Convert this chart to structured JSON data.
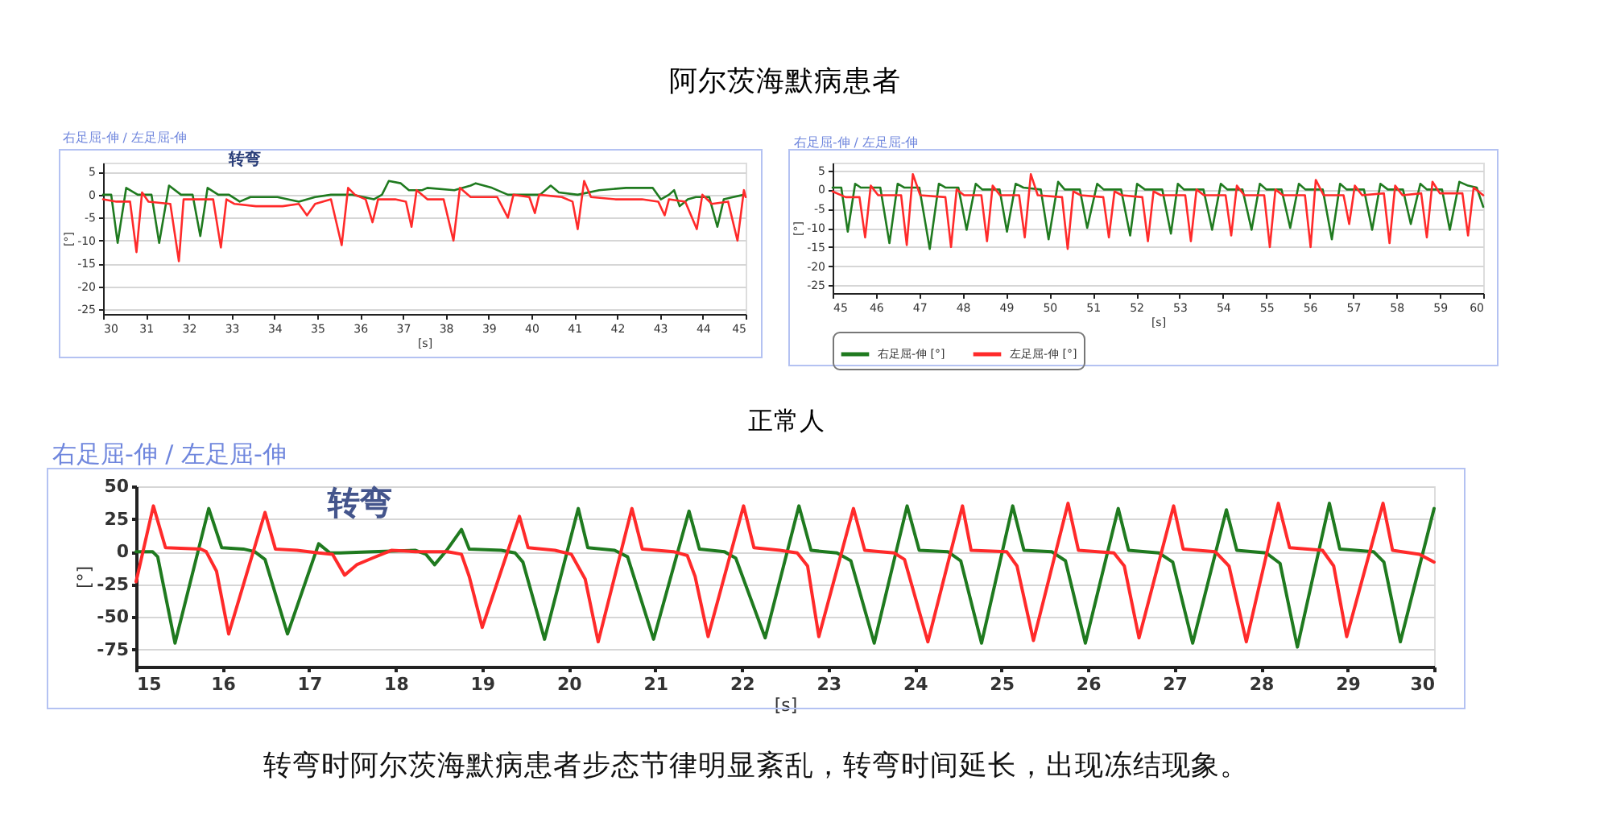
{
  "chart_data": [
    {
      "type": "line",
      "title": "阿尔茨海默病患者",
      "subtitle": "右足屈-伸 / 左足屈-伸",
      "xlabel": "[s]",
      "ylabel": "[°]",
      "annotations": [
        "转弯"
      ],
      "xlim": [
        30,
        45
      ],
      "ylim": [
        -26,
        7
      ],
      "xticks": [
        30,
        31,
        32,
        33,
        34,
        35,
        36,
        37,
        38,
        39,
        40,
        41,
        42,
        43,
        44,
        45
      ],
      "yticks": [
        5,
        0,
        -5,
        -10,
        -15,
        -20,
        -25
      ],
      "grid": "y",
      "series": [
        {
          "color": "#1f7a1f",
          "x": [
            30.0,
            30.19,
            30.34,
            30.54,
            30.81,
            31.13,
            31.31,
            31.54,
            31.82,
            32.09,
            32.27,
            32.44,
            32.69,
            32.94,
            33.19,
            33.44,
            34.07,
            34.57,
            34.95,
            35.32,
            35.82,
            36.32,
            36.51,
            36.67,
            36.95,
            37.14,
            37.45,
            37.57,
            38.2,
            38.58,
            38.7,
            39.08,
            39.45,
            39.83,
            40.2,
            40.45,
            40.64,
            41.08,
            41.58,
            42.21,
            42.83,
            43.02,
            43.21,
            43.33,
            43.46,
            43.65,
            43.84,
            44.15,
            44.34,
            44.49,
            44.71,
            44.96
          ],
          "values": [
            0,
            0,
            -10.5,
            1.5,
            0,
            0,
            -10.5,
            2,
            0,
            0,
            -9,
            1.5,
            0,
            0,
            -1.5,
            -0.5,
            -0.5,
            -1.5,
            -0.5,
            0,
            0,
            -1,
            0,
            3,
            2.5,
            1,
            1,
            1.5,
            1,
            2,
            2.5,
            1.5,
            0,
            0,
            0,
            2,
            0.5,
            0,
            1,
            1.5,
            1.5,
            -1,
            0,
            1,
            -2.5,
            -1,
            -0.5,
            -0.5,
            -7,
            -1,
            -0.5,
            0
          ]
        },
        {
          "color": "#ff2a2a",
          "x": [
            30.0,
            30.31,
            30.63,
            30.78,
            30.91,
            31.06,
            31.57,
            31.77,
            31.88,
            32.19,
            32.57,
            32.75,
            32.88,
            33.07,
            33.57,
            34.19,
            34.57,
            34.76,
            34.95,
            35.32,
            35.57,
            35.72,
            35.88,
            36.13,
            36.29,
            36.42,
            36.82,
            37.07,
            37.2,
            37.32,
            37.57,
            37.95,
            38.18,
            38.33,
            38.58,
            39.2,
            39.45,
            39.58,
            39.95,
            40.08,
            40.18,
            40.71,
            40.96,
            41.08,
            41.23,
            41.39,
            41.96,
            42.58,
            42.96,
            43.11,
            43.21,
            43.59,
            43.86,
            43.99,
            44.21,
            44.59,
            44.81,
            44.96,
            45.0
          ],
          "values": [
            -1,
            -1.5,
            -1.5,
            -12.5,
            0.5,
            -1.5,
            -2,
            -14.5,
            -1,
            -1,
            -1,
            -11.5,
            -1,
            -2,
            -2.5,
            -2.5,
            -2,
            -4.5,
            -2,
            -1,
            -11,
            1.5,
            0,
            -1,
            -6,
            -1,
            -1,
            -1.5,
            -7,
            1,
            -1,
            -1,
            -10,
            1.5,
            -0.5,
            -0.5,
            -5,
            0,
            -0.5,
            -4,
            0,
            -0.5,
            -1.5,
            -7.5,
            3,
            -0.5,
            -1,
            -1,
            -1.5,
            -4.5,
            -1,
            -1.5,
            -7.5,
            0,
            -2,
            -1.5,
            -10,
            1,
            -0.5
          ]
        }
      ]
    },
    {
      "type": "line",
      "subtitle": "右足屈-伸 / 左足屈-伸",
      "xlabel": "[s]",
      "ylabel": "[°]",
      "xlim": [
        45,
        60
      ],
      "ylim": [
        -27,
        7
      ],
      "xticks": [
        45,
        46,
        47,
        48,
        49,
        50,
        51,
        52,
        53,
        54,
        55,
        56,
        57,
        58,
        59,
        60
      ],
      "yticks": [
        5,
        0,
        -5,
        -10,
        -15,
        -20,
        -25
      ],
      "grid": "y",
      "legend": "bottom",
      "series": [
        {
          "name": "右足屈-伸 [°]",
          "color": "#1f7a1f",
          "x": [
            45.0,
            45.2,
            45.35,
            45.52,
            45.65,
            46.1,
            46.31,
            46.5,
            46.65,
            47.0,
            47.24,
            47.45,
            47.6,
            47.9,
            48.09,
            48.3,
            48.45,
            48.85,
            49.02,
            49.22,
            49.4,
            49.8,
            49.98,
            50.2,
            50.35,
            50.7,
            50.87,
            51.1,
            51.25,
            51.65,
            51.86,
            52.02,
            52.2,
            52.6,
            52.8,
            52.96,
            53.1,
            53.55,
            53.75,
            53.95,
            54.1,
            54.45,
            54.66,
            54.85,
            55.0,
            55.35,
            55.55,
            55.75,
            55.9,
            56.3,
            56.51,
            56.7,
            56.85,
            57.25,
            57.44,
            57.63,
            57.8,
            58.15,
            58.33,
            58.55,
            58.7,
            59.05,
            59.23,
            59.45,
            59.65,
            59.85,
            60.0
          ],
          "values": [
            0.5,
            0.5,
            -11,
            1.5,
            0.5,
            0.5,
            -14,
            1.5,
            0.5,
            0.5,
            -15.5,
            1.5,
            0.5,
            0.5,
            -10.5,
            1.5,
            0,
            0,
            -11,
            1.5,
            0.5,
            0,
            -13,
            2,
            0,
            0,
            -10,
            1.5,
            0,
            0,
            -12,
            1.5,
            0,
            0,
            -11.5,
            1.5,
            0,
            0,
            -10.5,
            1.5,
            0,
            0,
            -10.5,
            1.5,
            0,
            0,
            -10,
            1.5,
            0,
            0,
            -13,
            1.5,
            0,
            0,
            -10.5,
            1.5,
            0,
            0,
            -9,
            1.5,
            0,
            0,
            -10.5,
            2,
            1,
            0.5,
            -4.5
          ]
        },
        {
          "name": "左足屈-伸 [°]",
          "color": "#ff2a2a",
          "x": [
            45.0,
            45.3,
            45.62,
            45.75,
            45.88,
            46.05,
            46.58,
            46.71,
            46.85,
            47.02,
            47.6,
            47.73,
            47.86,
            48.03,
            48.43,
            48.56,
            48.69,
            48.86,
            49.3,
            49.43,
            49.57,
            49.73,
            50.29,
            50.42,
            50.55,
            50.72,
            51.24,
            51.37,
            51.5,
            51.67,
            52.14,
            52.27,
            52.4,
            52.57,
            53.13,
            53.26,
            53.39,
            53.56,
            54.06,
            54.19,
            54.32,
            54.49,
            54.95,
            55.08,
            55.21,
            55.38,
            55.89,
            56.02,
            56.14,
            56.32,
            56.78,
            56.91,
            57.04,
            57.21,
            57.71,
            57.84,
            57.97,
            58.14,
            58.57,
            58.7,
            58.83,
            59.0,
            59.52,
            59.65,
            59.78,
            60.0
          ],
          "values": [
            -0.5,
            -2,
            -2,
            -12.5,
            1,
            -1.5,
            -1.5,
            -14.5,
            4,
            -1.5,
            -2,
            -15,
            0,
            -1.5,
            -1.5,
            -13.5,
            1,
            -1.5,
            -1.5,
            -12.5,
            4,
            -1.5,
            -2,
            -15.5,
            -0.5,
            -1.5,
            -2,
            -12.5,
            -0.5,
            -1.5,
            -2,
            -13.5,
            -0.5,
            -1.5,
            -1.5,
            -13.5,
            0,
            -1.5,
            -1.5,
            -12,
            1,
            -1.5,
            -1.5,
            -15,
            0,
            -1.5,
            -1.5,
            -15,
            2.5,
            -1.5,
            -1.5,
            -9,
            1,
            -1.5,
            -1,
            -14,
            1,
            -1.5,
            -1,
            -12.5,
            2,
            -1,
            -1,
            -12,
            0.5,
            -1.5
          ]
        }
      ]
    },
    {
      "type": "line",
      "title": "正常人",
      "subtitle": "右足屈-伸 / 左足屈-伸",
      "xlabel": "[s]",
      "ylabel": "[°]",
      "annotations": [
        "转弯",
        "转弯时阿尔茨海默病患者步态节律明显紊乱，转弯时间延长，出现冻结现象。"
      ],
      "xlim": [
        15,
        30
      ],
      "ylim": [
        -88,
        50
      ],
      "xticks": [
        15,
        16,
        17,
        18,
        19,
        20,
        21,
        22,
        23,
        24,
        25,
        26,
        27,
        28,
        29,
        30
      ],
      "yticks": [
        50,
        25,
        0,
        -25,
        -50,
        -75
      ],
      "grid": "y",
      "series": [
        {
          "color": "#1f7a1f",
          "x": [
            15.0,
            15.19,
            15.25,
            15.45,
            15.84,
            15.99,
            16.24,
            16.37,
            16.49,
            16.75,
            17.11,
            17.24,
            17.36,
            17.73,
            18.23,
            18.35,
            18.45,
            18.6,
            18.76,
            18.85,
            19.22,
            19.38,
            19.47,
            19.72,
            20.11,
            20.22,
            20.53,
            20.68,
            20.98,
            21.39,
            21.51,
            21.8,
            21.93,
            22.27,
            22.66,
            22.8,
            23.1,
            23.26,
            23.53,
            23.91,
            24.05,
            24.38,
            24.53,
            24.77,
            25.13,
            25.26,
            25.58,
            25.74,
            25.97,
            26.35,
            26.47,
            26.82,
            26.98,
            27.21,
            27.6,
            27.72,
            28.06,
            28.22,
            28.42,
            28.79,
            28.91,
            29.3,
            29.42,
            29.61,
            30.0
          ],
          "values": [
            0,
            0,
            -4,
            -70,
            33,
            3,
            2,
            0,
            -6,
            -63,
            6,
            -1,
            -1,
            0,
            1,
            -2,
            -10,
            2,
            17,
            2,
            1,
            -1,
            -8,
            -67,
            33,
            3,
            1,
            -4,
            -67,
            31,
            2,
            0,
            -5,
            -66,
            35,
            1,
            -1,
            -7,
            -70,
            35,
            1,
            0,
            -7,
            -70,
            35,
            1,
            0,
            -7,
            -70,
            33,
            1,
            -1,
            -8,
            -70,
            32,
            1,
            -1,
            -9,
            -73,
            37,
            2,
            0,
            -8,
            -69,
            33
          ]
        },
        {
          "color": "#ff2a2a",
          "x": [
            15.0,
            15.2,
            15.34,
            15.75,
            15.81,
            15.93,
            16.07,
            16.49,
            16.61,
            16.86,
            17.11,
            17.27,
            17.41,
            17.55,
            17.73,
            17.95,
            18.23,
            18.6,
            18.76,
            18.85,
            19.0,
            19.43,
            19.53,
            19.84,
            20.03,
            20.19,
            20.34,
            20.73,
            20.85,
            21.21,
            21.37,
            21.46,
            21.61,
            22.02,
            22.14,
            22.44,
            22.64,
            22.76,
            22.89,
            23.29,
            23.42,
            23.76,
            23.88,
            24.15,
            24.55,
            24.65,
            25.06,
            25.18,
            25.37,
            25.77,
            25.89,
            26.3,
            26.42,
            26.59,
            26.99,
            27.1,
            27.47,
            27.63,
            27.83,
            28.2,
            28.33,
            28.71,
            28.84,
            28.99,
            29.41,
            29.52,
            29.83,
            30.0
          ],
          "values": [
            -23,
            35,
            3,
            2,
            0,
            -15,
            -63,
            30,
            2,
            1,
            -1,
            -2,
            -18,
            -10,
            -5,
            1,
            0,
            0,
            -2,
            -19,
            -58,
            27,
            3,
            1,
            -2,
            -21,
            -69,
            33,
            2,
            0,
            -3,
            -19,
            -65,
            35,
            3,
            1,
            -1,
            -11,
            -65,
            33,
            1,
            -1,
            -6,
            -69,
            35,
            1,
            0,
            -11,
            -68,
            37,
            1,
            -1,
            -11,
            -66,
            35,
            2,
            0,
            -11,
            -69,
            37,
            3,
            1,
            -11,
            -65,
            37,
            1,
            -2,
            -8
          ]
        }
      ]
    }
  ]
}
